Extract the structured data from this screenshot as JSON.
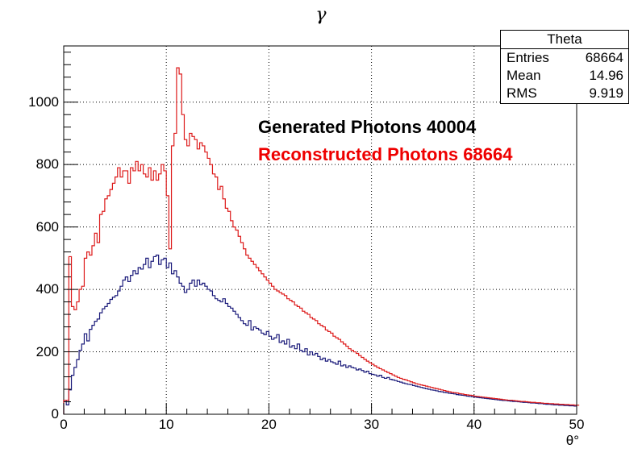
{
  "title": "γ",
  "stats": {
    "title": "Theta",
    "rows": [
      {
        "label": "Entries",
        "value": "68664"
      },
      {
        "label": "Mean",
        "value": "14.96"
      },
      {
        "label": "RMS",
        "value": "9.919"
      }
    ]
  },
  "annotations": {
    "generated": "Generated Photons 40004",
    "reconstructed": "Reconstructed Photons 68664"
  },
  "colors": {
    "generated": "#1a1a7a",
    "reconstructed": "#dd1a1a"
  },
  "chart_data": {
    "type": "line",
    "title": "γ",
    "xlabel": "θ°",
    "ylabel": "",
    "xlim": [
      0,
      50
    ],
    "ylim": [
      0,
      1180
    ],
    "xticks": [
      "0",
      "10",
      "20",
      "30",
      "40",
      "50"
    ],
    "yticks": [
      "0",
      "200",
      "400",
      "600",
      "800",
      "1000"
    ],
    "grid": true,
    "bin_width": 0.25,
    "series": [
      {
        "key": "generated",
        "values": [
          45,
          30,
          78,
          125,
          150,
          175,
          205,
          225,
          258,
          235,
          272,
          285,
          298,
          305,
          325,
          338,
          345,
          355,
          368,
          375,
          380,
          395,
          410,
          430,
          440,
          425,
          445,
          460,
          450,
          470,
          465,
          480,
          500,
          470,
          490,
          505,
          510,
          480,
          495,
          500,
          470,
          485,
          450,
          460,
          440,
          420,
          410,
          390,
          400,
          420,
          430,
          410,
          430,
          415,
          420,
          410,
          400,
          395,
          380,
          370,
          365,
          360,
          370,
          355,
          345,
          340,
          330,
          320,
          310,
          300,
          290,
          285,
          300,
          270,
          280,
          275,
          270,
          260,
          255,
          265,
          250,
          240,
          245,
          255,
          230,
          235,
          225,
          240,
          215,
          220,
          210,
          225,
          205,
          200,
          210,
          190,
          200,
          190,
          195,
          185,
          175,
          180,
          170,
          175,
          168,
          165,
          160,
          170,
          155,
          158,
          150,
          155,
          150,
          148,
          142,
          145,
          140,
          135,
          138,
          130,
          128,
          126,
          122,
          125,
          118,
          115,
          118,
          112,
          110,
          108,
          105,
          103,
          100,
          98,
          96,
          95,
          92,
          90,
          88,
          86,
          84,
          82,
          80,
          78,
          77,
          75,
          73,
          72,
          70,
          69,
          67,
          66,
          65,
          63,
          62,
          61,
          60,
          58,
          57,
          56,
          55,
          54,
          53,
          52,
          51,
          50,
          49,
          48,
          47,
          46,
          45,
          44,
          44,
          43,
          42,
          41,
          41,
          40,
          39,
          38,
          38,
          37,
          36,
          36,
          35,
          34,
          34,
          33,
          32,
          32,
          31,
          30,
          30,
          29,
          29,
          28,
          28,
          27,
          27,
          26
        ]
      },
      {
        "key": "reconstructed",
        "values": [
          45,
          45,
          505,
          345,
          335,
          360,
          400,
          410,
          500,
          520,
          510,
          540,
          580,
          550,
          640,
          650,
          690,
          700,
          720,
          740,
          760,
          790,
          760,
          780,
          780,
          740,
          790,
          780,
          810,
          780,
          800,
          770,
          760,
          790,
          750,
          780,
          750,
          770,
          800,
          780,
          700,
          530,
          860,
          900,
          1110,
          1090,
          960,
          880,
          860,
          900,
          890,
          880,
          850,
          870,
          860,
          840,
          820,
          800,
          770,
          760,
          720,
          730,
          690,
          660,
          650,
          620,
          600,
          590,
          570,
          550,
          530,
          510,
          500,
          490,
          480,
          470,
          460,
          450,
          440,
          430,
          420,
          410,
          400,
          395,
          390,
          385,
          380,
          370,
          365,
          360,
          350,
          345,
          340,
          330,
          325,
          320,
          310,
          305,
          300,
          290,
          285,
          280,
          270,
          265,
          260,
          250,
          245,
          240,
          232,
          225,
          218,
          210,
          205,
          200,
          195,
          188,
          182,
          176,
          170,
          165,
          160,
          155,
          150,
          146,
          142,
          138,
          134,
          130,
          126,
          122,
          118,
          115,
          112,
          110,
          107,
          104,
          101,
          98,
          96,
          94,
          92,
          90,
          88,
          86,
          84,
          82,
          80,
          78,
          76,
          74,
          72,
          70,
          69,
          68,
          66,
          65,
          63,
          62,
          61,
          60,
          58,
          57,
          56,
          55,
          54,
          53,
          52,
          51,
          50,
          49,
          48,
          47,
          46,
          45,
          45,
          44,
          43,
          42,
          41,
          41,
          40,
          39,
          38,
          38,
          37,
          37,
          36,
          35,
          35,
          34,
          34,
          33,
          33,
          32,
          32,
          31,
          31,
          30,
          30,
          29,
          29
        ]
      }
    ]
  }
}
